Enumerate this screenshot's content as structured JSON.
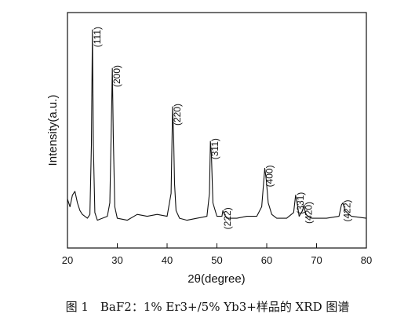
{
  "chart_data": {
    "type": "line",
    "title": "",
    "xlabel": "2θ(degree)",
    "ylabel": "Intensity(a.u.)",
    "xlim": [
      20,
      80
    ],
    "xticks": [
      20,
      30,
      40,
      50,
      60,
      70,
      80
    ],
    "y_ticks_shown": false,
    "grid": false,
    "legend": "none",
    "line_color": "#111111",
    "series": [
      {
        "name": "",
        "x": [
          20,
          20.5,
          21,
          21.5,
          22,
          22.5,
          23,
          24,
          24.5,
          24.8,
          25,
          25.2,
          25.5,
          26,
          27,
          28,
          28.5,
          28.8,
          29,
          29.2,
          29.5,
          30,
          32,
          34,
          36,
          38,
          40,
          40.8,
          41.1,
          41.3,
          41.5,
          41.8,
          42.5,
          44,
          46,
          48,
          48.5,
          48.7,
          48.9,
          49.2,
          50,
          51,
          51.2,
          51.5,
          52,
          54,
          56,
          58,
          59,
          59.6,
          59.9,
          60.3,
          61,
          62,
          64,
          65.4,
          65.8,
          66.1,
          66.5,
          67.2,
          67.5,
          67.8,
          69,
          72,
          74.5,
          75,
          75.3,
          75.7,
          77,
          80
        ],
        "y": [
          12,
          8,
          14,
          16,
          10,
          6,
          4,
          2,
          4,
          40,
          100,
          40,
          5,
          1,
          2,
          3,
          10,
          50,
          80,
          45,
          8,
          2,
          1,
          4,
          3,
          4,
          3,
          15,
          60,
          45,
          20,
          6,
          2,
          1,
          2,
          3,
          15,
          42,
          35,
          10,
          3,
          3,
          6,
          4,
          2,
          2,
          3,
          3,
          8,
          28,
          22,
          10,
          4,
          2,
          2,
          5,
          14,
          10,
          3,
          6,
          9,
          4,
          2,
          2,
          3,
          9,
          10,
          6,
          3,
          2
        ]
      }
    ],
    "annotations": [
      {
        "text": "(111)",
        "x": 25.0,
        "y": 100
      },
      {
        "text": "(200)",
        "x": 29.0,
        "y": 80
      },
      {
        "text": "(220)",
        "x": 41.1,
        "y": 60
      },
      {
        "text": "(311)",
        "x": 48.7,
        "y": 42
      },
      {
        "text": "(222)",
        "x": 51.2,
        "y": 6
      },
      {
        "text": "(400)",
        "x": 59.6,
        "y": 28
      },
      {
        "text": "(331)",
        "x": 65.8,
        "y": 14
      },
      {
        "text": "(420)",
        "x": 67.5,
        "y": 9
      },
      {
        "text": "(422)",
        "x": 75.2,
        "y": 10
      }
    ]
  },
  "caption": "图 1　BaF2：1% Er3+/5% Yb3+样品的 XRD 图谱"
}
